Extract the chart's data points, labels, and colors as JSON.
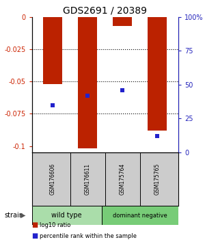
{
  "title": "GDS2691 / 20389",
  "samples": [
    "GSM176606",
    "GSM176611",
    "GSM175764",
    "GSM175765"
  ],
  "log10_ratio": [
    -0.052,
    -0.102,
    -0.007,
    -0.088
  ],
  "percentile_rank": [
    0.35,
    0.42,
    0.46,
    0.12
  ],
  "ylim": [
    -0.105,
    0.0
  ],
  "yticks": [
    0,
    -0.025,
    -0.05,
    -0.075,
    -0.1
  ],
  "groups": [
    {
      "label": "wild type",
      "color": "#aaddaa"
    },
    {
      "label": "dominant negative",
      "color": "#77cc77"
    }
  ],
  "bar_color": "#bb2200",
  "dot_color": "#2222cc",
  "bar_width": 0.55,
  "bg_color": "#ffffff",
  "label_area_color": "#cccccc",
  "left_axis_color": "#cc2200",
  "right_axis_color": "#2222bb",
  "grid_yticks": [
    -0.025,
    -0.05,
    -0.075
  ]
}
